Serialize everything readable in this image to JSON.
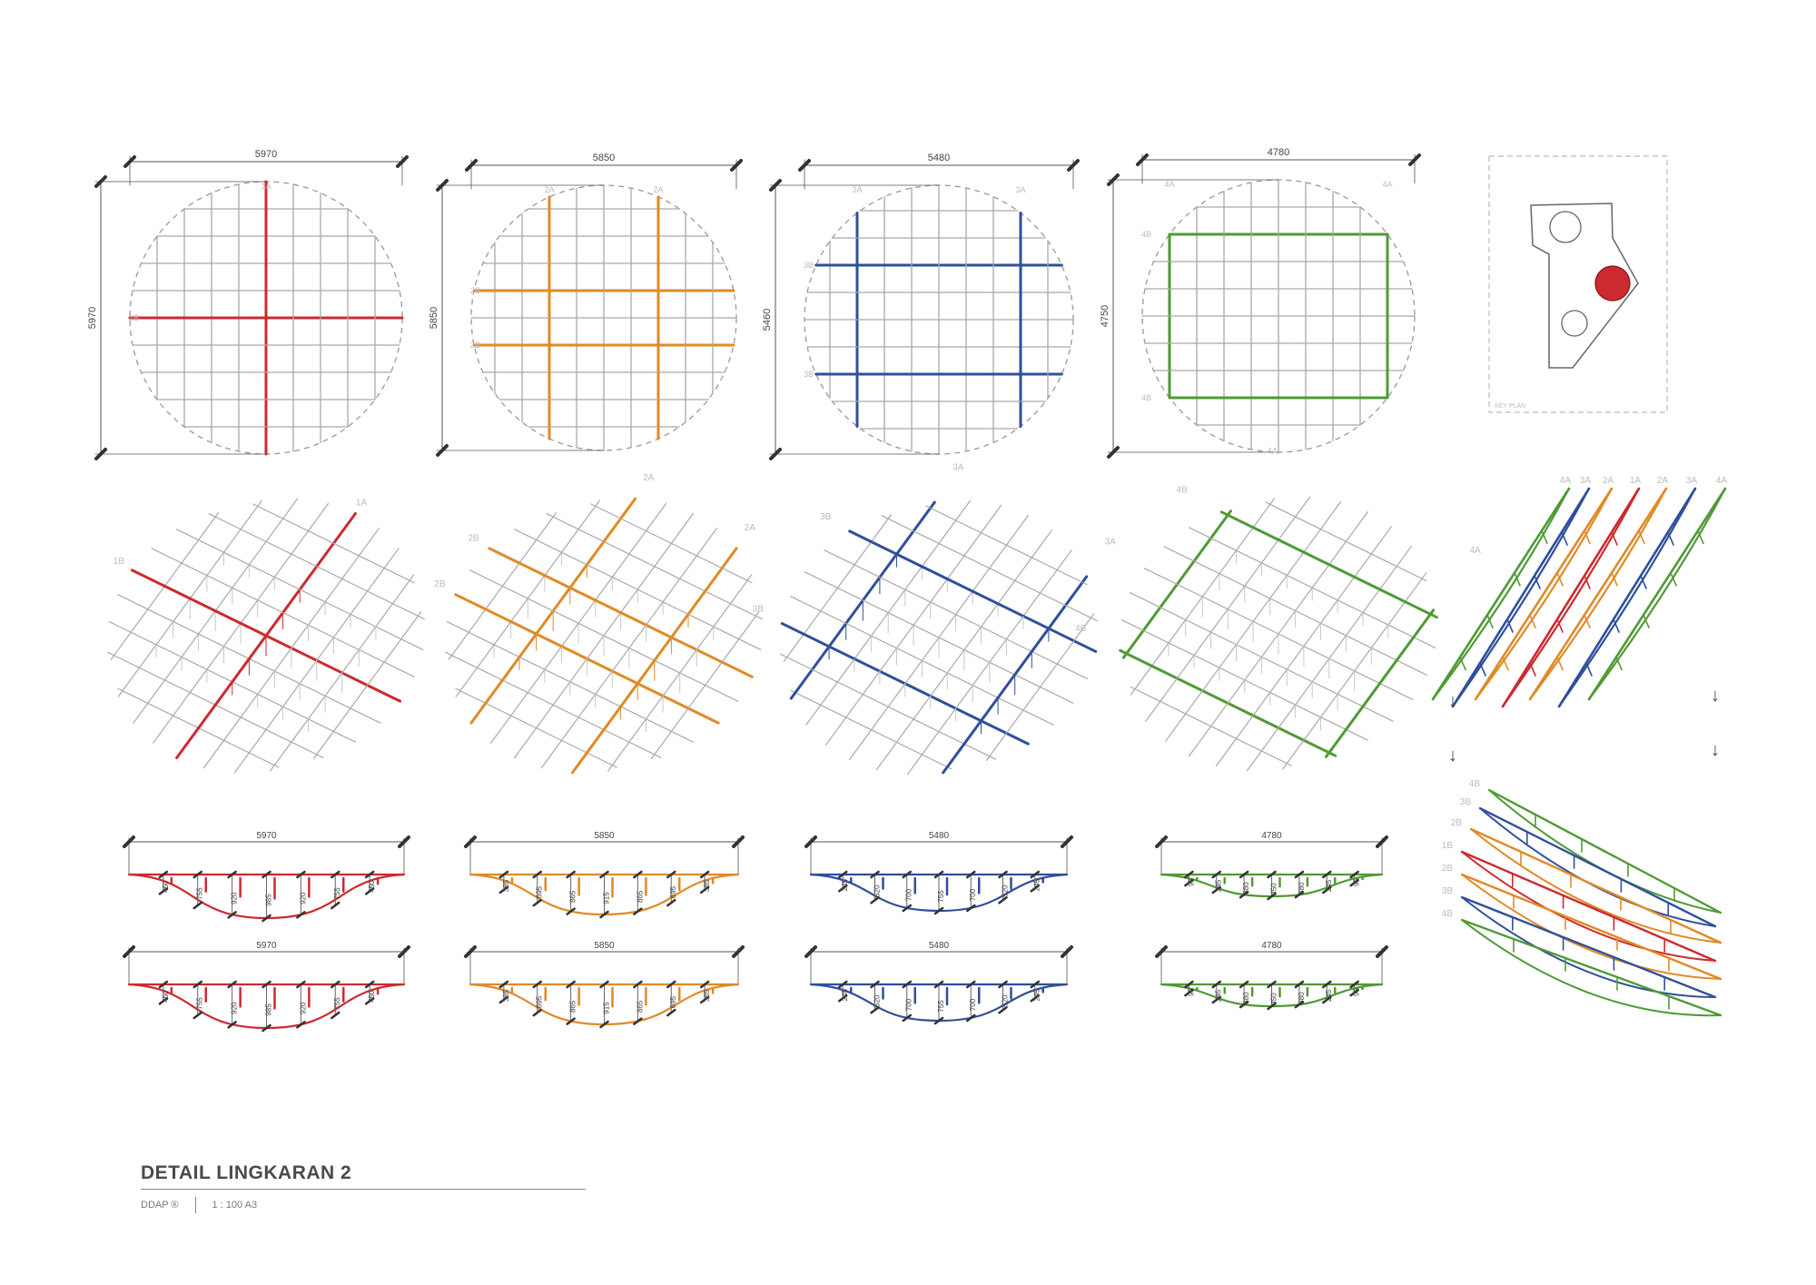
{
  "colors": {
    "c1": "#cc2a2f",
    "c2": "#e08a26",
    "c3": "#2f4f9c",
    "c4": "#4f9a35",
    "grid": "#a9a9a9",
    "dim": "#555555"
  },
  "plans": [
    {
      "color": "c1",
      "width_label": "5970",
      "height_label": "5970",
      "a_label": "1A",
      "b_label": "1B"
    },
    {
      "color": "c2",
      "width_label": "5850",
      "height_label": "5850",
      "a_label": "2A",
      "b_label": "2B"
    },
    {
      "color": "c3",
      "width_label": "5480",
      "height_label": "5460",
      "a_label": "3A",
      "b_label": "3B"
    },
    {
      "color": "c4",
      "width_label": "4780",
      "height_label": "4750",
      "a_label": "4A",
      "b_label": "4B"
    }
  ],
  "key_plan": {
    "label": "KEY PLAN"
  },
  "sections_top": [
    {
      "span_label": "5970",
      "depths": [
        "450",
        "755",
        "920",
        "985",
        "920",
        "755",
        "450"
      ]
    },
    {
      "span_label": "5850",
      "depths": [
        "385",
        "695",
        "865",
        "915",
        "865",
        "695",
        "385"
      ]
    },
    {
      "span_label": "5480",
      "depths": [
        "245",
        "520",
        "700",
        "755",
        "700",
        "520",
        "245"
      ]
    },
    {
      "span_label": "4780",
      "depths": [
        "95",
        "245",
        "380",
        "450",
        "380",
        "245",
        "95"
      ]
    }
  ],
  "sections_bottom": [
    {
      "span_label": "5970",
      "depths": [
        "450",
        "755",
        "920",
        "985",
        "920",
        "755",
        "450"
      ]
    },
    {
      "span_label": "5850",
      "depths": [
        "385",
        "695",
        "865",
        "915",
        "865",
        "695",
        "385"
      ]
    },
    {
      "span_label": "5480",
      "depths": [
        "245",
        "520",
        "700",
        "755",
        "700",
        "520",
        "245"
      ]
    },
    {
      "span_label": "4780",
      "depths": [
        "95",
        "245",
        "380",
        "450",
        "380",
        "245",
        "95"
      ]
    }
  ],
  "stacks": {
    "top_labels": [
      "4A",
      "3A",
      "2A",
      "1A",
      "2A",
      "3A",
      "4A"
    ],
    "bottom_labels": [
      "4B",
      "3B",
      "2B",
      "1B",
      "2B",
      "3B",
      "4B"
    ],
    "top_colors": [
      "c4",
      "c3",
      "c2",
      "c1",
      "c2",
      "c3",
      "c4"
    ],
    "bottom_colors": [
      "c4",
      "c3",
      "c2",
      "c1",
      "c2",
      "c3",
      "c4"
    ]
  },
  "arrows": [
    "↓",
    "↓",
    "↓",
    "↓"
  ],
  "title_block": {
    "title": "DETAIL LINGKARAN 2",
    "brand": "DDAP ®",
    "scale": "1 : 100 A3"
  }
}
